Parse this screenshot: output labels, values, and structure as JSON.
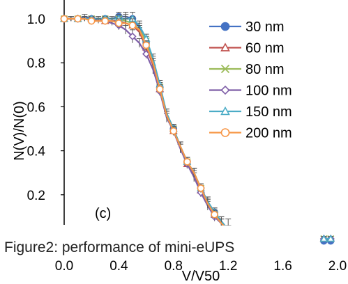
{
  "chart_data": {
    "type": "line",
    "xlabel": "V/V50",
    "ylabel": "N(V)/N(0)",
    "xlim": [
      0.0,
      2.0
    ],
    "ylim": [
      0.0,
      1.0
    ],
    "x_ticks": [
      "0.0",
      "0.4",
      "0.8",
      "1.2",
      "1.6",
      "2.0"
    ],
    "y_ticks": [
      "0.2",
      "0.4",
      "0.6",
      "0.8",
      "1.0"
    ],
    "x_tick_values": [
      0.0,
      0.4,
      0.8,
      1.2,
      1.6,
      2.0
    ],
    "y_tick_values": [
      0.2,
      0.4,
      0.6,
      0.8,
      1.0
    ],
    "legend_position": "top-right",
    "panel_label": "(c)",
    "caption": "Figure2: performance of mini-eUPS",
    "error_bars": true,
    "series": [
      {
        "name": "30 nm",
        "color": "#4472C4",
        "marker": "circle",
        "x": [
          0.0,
          0.05,
          0.1,
          0.15,
          0.2,
          0.25,
          0.3,
          0.35,
          0.4,
          0.45,
          0.5,
          0.55,
          0.6,
          0.65,
          0.7,
          0.75,
          0.8,
          0.85,
          0.9,
          0.95,
          1.0,
          1.05,
          1.1,
          1.15,
          1.2,
          1.25,
          1.9,
          1.95
        ],
        "y": [
          1.0,
          1.0,
          1.0,
          1.01,
          1.0,
          1.0,
          1.0,
          1.0,
          1.01,
          1.01,
          1.0,
          0.96,
          0.89,
          0.8,
          0.69,
          0.57,
          0.5,
          0.42,
          0.35,
          0.3,
          0.23,
          0.17,
          0.12,
          0.08,
          0.04,
          0.02,
          -0.01,
          -0.01
        ],
        "err": [
          0.01,
          0.01,
          0.01,
          0.01,
          0.01,
          0.01,
          0.01,
          0.01,
          0.02,
          0.02,
          0.03,
          0.02,
          0.02,
          0.02,
          0.02,
          0.02,
          0.02,
          0.02,
          0.02,
          0.02,
          0.02,
          0.02,
          0.02,
          0.02,
          0.02,
          0.02,
          0.01,
          0.01
        ]
      },
      {
        "name": "60 nm",
        "color": "#C0504D",
        "marker": "triangle",
        "x": [
          0.0,
          0.05,
          0.1,
          0.15,
          0.2,
          0.25,
          0.3,
          0.35,
          0.4,
          0.45,
          0.5,
          0.55,
          0.6,
          0.65,
          0.7,
          0.75,
          0.8,
          0.85,
          0.9,
          0.95,
          1.0,
          1.05,
          1.1,
          1.15,
          1.2,
          1.25,
          1.9,
          1.95
        ],
        "y": [
          1.0,
          1.0,
          1.0,
          1.0,
          1.0,
          1.0,
          0.99,
          0.99,
          0.99,
          0.98,
          0.97,
          0.94,
          0.87,
          0.79,
          0.68,
          0.56,
          0.49,
          0.41,
          0.34,
          0.29,
          0.22,
          0.16,
          0.11,
          0.07,
          0.04,
          0.02,
          0.0,
          0.0
        ],
        "err": [
          0.01,
          0.01,
          0.01,
          0.01,
          0.01,
          0.01,
          0.01,
          0.01,
          0.01,
          0.02,
          0.03,
          0.02,
          0.02,
          0.02,
          0.02,
          0.02,
          0.02,
          0.02,
          0.02,
          0.02,
          0.02,
          0.02,
          0.02,
          0.02,
          0.02,
          0.02,
          0.01,
          0.01
        ]
      },
      {
        "name": "80 nm",
        "color": "#9BBB59",
        "marker": "x",
        "x": [
          0.0,
          0.05,
          0.1,
          0.15,
          0.2,
          0.25,
          0.3,
          0.35,
          0.4,
          0.45,
          0.5,
          0.55,
          0.6,
          0.65,
          0.7,
          0.75,
          0.8,
          0.85,
          0.9,
          0.95,
          1.0,
          1.05,
          1.1,
          1.15,
          1.2,
          1.25,
          1.9,
          1.95
        ],
        "y": [
          1.0,
          1.0,
          1.0,
          1.0,
          1.0,
          1.0,
          1.0,
          1.0,
          1.0,
          0.99,
          0.98,
          0.95,
          0.9,
          0.81,
          0.69,
          0.57,
          0.5,
          0.42,
          0.35,
          0.3,
          0.23,
          0.16,
          0.11,
          0.07,
          0.04,
          0.02,
          0.0,
          0.0
        ],
        "err": [
          0.01,
          0.01,
          0.01,
          0.01,
          0.01,
          0.01,
          0.01,
          0.01,
          0.01,
          0.02,
          0.03,
          0.02,
          0.02,
          0.02,
          0.02,
          0.02,
          0.02,
          0.02,
          0.02,
          0.02,
          0.02,
          0.02,
          0.02,
          0.02,
          0.02,
          0.02,
          0.01,
          0.01
        ]
      },
      {
        "name": "100 nm",
        "color": "#7F5FA8",
        "marker": "diamond",
        "x": [
          0.0,
          0.05,
          0.1,
          0.15,
          0.2,
          0.25,
          0.3,
          0.35,
          0.4,
          0.45,
          0.5,
          0.55,
          0.6,
          0.65,
          0.7,
          0.75,
          0.8,
          0.85,
          0.9,
          0.95,
          1.0,
          1.05,
          1.1,
          1.15,
          1.2,
          1.25,
          1.9,
          1.95
        ],
        "y": [
          1.0,
          1.0,
          1.0,
          1.0,
          1.0,
          0.99,
          0.99,
          0.98,
          0.97,
          0.95,
          0.92,
          0.89,
          0.84,
          0.77,
          0.67,
          0.55,
          0.49,
          0.41,
          0.34,
          0.28,
          0.21,
          0.15,
          0.1,
          0.07,
          0.04,
          0.02,
          0.0,
          0.0
        ],
        "err": [
          0.01,
          0.01,
          0.01,
          0.01,
          0.01,
          0.01,
          0.01,
          0.01,
          0.02,
          0.02,
          0.03,
          0.02,
          0.02,
          0.02,
          0.02,
          0.02,
          0.02,
          0.02,
          0.02,
          0.02,
          0.02,
          0.02,
          0.02,
          0.02,
          0.02,
          0.02,
          0.01,
          0.01
        ]
      },
      {
        "name": "150 nm",
        "color": "#4BACC6",
        "marker": "triangle",
        "x": [
          0.0,
          0.05,
          0.1,
          0.15,
          0.2,
          0.25,
          0.3,
          0.35,
          0.4,
          0.45,
          0.5,
          0.55,
          0.6,
          0.65,
          0.7,
          0.75,
          0.8,
          0.85,
          0.9,
          0.95,
          1.0,
          1.05,
          1.1,
          1.15,
          1.2,
          1.25,
          1.9,
          1.95
        ],
        "y": [
          1.0,
          1.0,
          1.0,
          1.0,
          1.0,
          1.0,
          1.0,
          1.0,
          1.0,
          1.0,
          1.0,
          0.97,
          0.91,
          0.82,
          0.7,
          0.57,
          0.5,
          0.42,
          0.35,
          0.3,
          0.23,
          0.17,
          0.12,
          0.08,
          0.04,
          0.02,
          0.0,
          0.0
        ],
        "err": [
          0.01,
          0.01,
          0.01,
          0.01,
          0.01,
          0.01,
          0.01,
          0.01,
          0.02,
          0.02,
          0.03,
          0.02,
          0.02,
          0.02,
          0.02,
          0.02,
          0.02,
          0.02,
          0.02,
          0.02,
          0.02,
          0.02,
          0.02,
          0.02,
          0.02,
          0.02,
          0.01,
          0.01
        ]
      },
      {
        "name": "200 nm",
        "color": "#F79646",
        "marker": "circle",
        "x": [
          0.0,
          0.05,
          0.1,
          0.15,
          0.2,
          0.25,
          0.3,
          0.35,
          0.4,
          0.45,
          0.5,
          0.55,
          0.6,
          0.65,
          0.7,
          0.75,
          0.8,
          0.85,
          0.9,
          0.95,
          1.0,
          1.05,
          1.1,
          1.15,
          1.2,
          1.25
        ],
        "y": [
          1.0,
          1.0,
          1.0,
          1.0,
          0.99,
          0.99,
          0.99,
          0.99,
          0.98,
          0.98,
          0.97,
          0.95,
          0.88,
          0.8,
          0.68,
          0.56,
          0.49,
          0.42,
          0.35,
          0.3,
          0.23,
          0.16,
          0.11,
          0.07,
          0.04,
          0.02
        ],
        "err": [
          0.01,
          0.01,
          0.01,
          0.01,
          0.01,
          0.01,
          0.01,
          0.01,
          0.02,
          0.02,
          0.03,
          0.02,
          0.02,
          0.02,
          0.02,
          0.02,
          0.02,
          0.02,
          0.02,
          0.02,
          0.02,
          0.02,
          0.02,
          0.02,
          0.05,
          0.02
        ]
      }
    ]
  }
}
